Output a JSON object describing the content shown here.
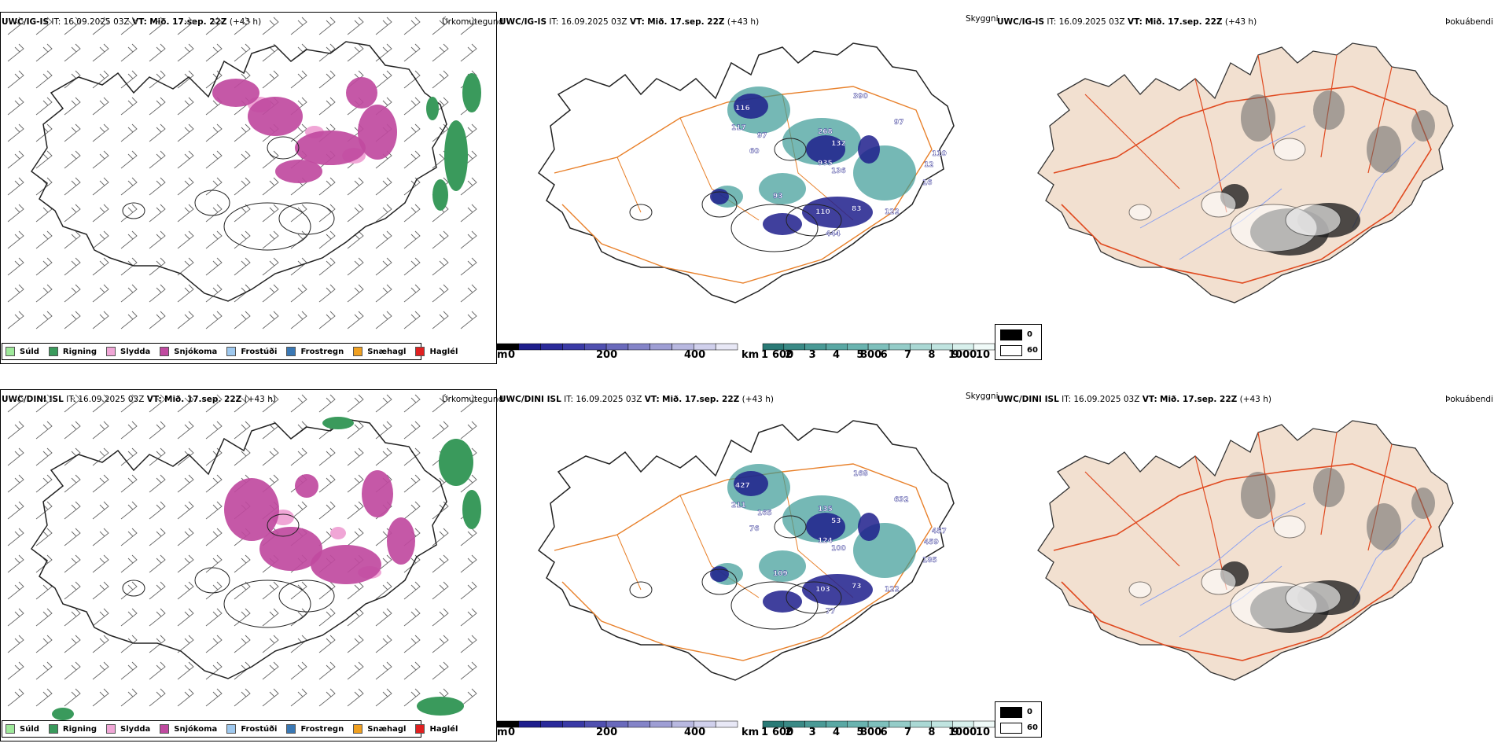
{
  "rows": [
    {
      "model": "UWC/IG-IS",
      "it_label": "IT:",
      "it_value": "16.09.2025 03Z",
      "vt_label": "VT:",
      "vt_value": "Mið. 17.sep. 22Z",
      "lead": "(+43 h)",
      "precip_title": "Úrkomutegund",
      "cloud_title": "Skyggni",
      "fog_title": "Þokuábendi",
      "cloud_labels": [
        "116",
        "117",
        "97",
        "60",
        "268",
        "132",
        "390",
        "97",
        "935",
        "136",
        "93",
        "110",
        "83",
        "122",
        "444",
        "110",
        "12",
        "16"
      ]
    },
    {
      "model": "UWC/DINI ISL",
      "it_label": "IT:",
      "it_value": "16.09.2025 03Z",
      "vt_label": "VT:",
      "vt_value": "Mið. 17.sep. 22Z",
      "lead": "(+43 h)",
      "precip_title": "Úrkomutegund",
      "cloud_title": "Skyggni",
      "fog_title": "Þokuábendi",
      "cloud_labels": [
        "427",
        "211",
        "165",
        "76",
        "135",
        "53",
        "168",
        "632",
        "124",
        "100",
        "109",
        "103",
        "73",
        "122",
        "77",
        "457",
        "459",
        "185"
      ]
    }
  ],
  "precip_legend": [
    {
      "label": "Súld",
      "color": "#9ee89a"
    },
    {
      "label": "Rigning",
      "color": "#3a9a5c"
    },
    {
      "label": "Slydda",
      "color": "#f0a6d6"
    },
    {
      "label": "Snjókoma",
      "color": "#c04aa0"
    },
    {
      "label": "Frostúði",
      "color": "#9ec8ee"
    },
    {
      "label": "Frostregn",
      "color": "#3a78b4"
    },
    {
      "label": "Snæhagl",
      "color": "#f0a020"
    },
    {
      "label": "Haglél",
      "color": "#e02020"
    }
  ],
  "height_bar": {
    "unit": "m",
    "ticks": [
      "0",
      "200",
      "400",
      "600",
      "800",
      "1000"
    ]
  },
  "visibility_bar": {
    "unit": "km",
    "ticks": [
      "1",
      "2",
      "3",
      "4",
      "5",
      "6",
      "7",
      "8",
      "9",
      "10"
    ]
  },
  "fog_legend": [
    {
      "label": "0",
      "color": "#000000"
    },
    {
      "label": "60",
      "color": "#ffffff"
    }
  ],
  "colors": {
    "rain": "#3a9a5c",
    "snow": "#c04aa0",
    "sleet": "#f0a6d6",
    "road": "#e8802a",
    "fog_land": "#f2e0d0",
    "fog_road": "#e04a20",
    "river": "#8aa0f0",
    "cloud_dark": "#1e1e8c",
    "cloud_teal": "#3a9a96"
  }
}
